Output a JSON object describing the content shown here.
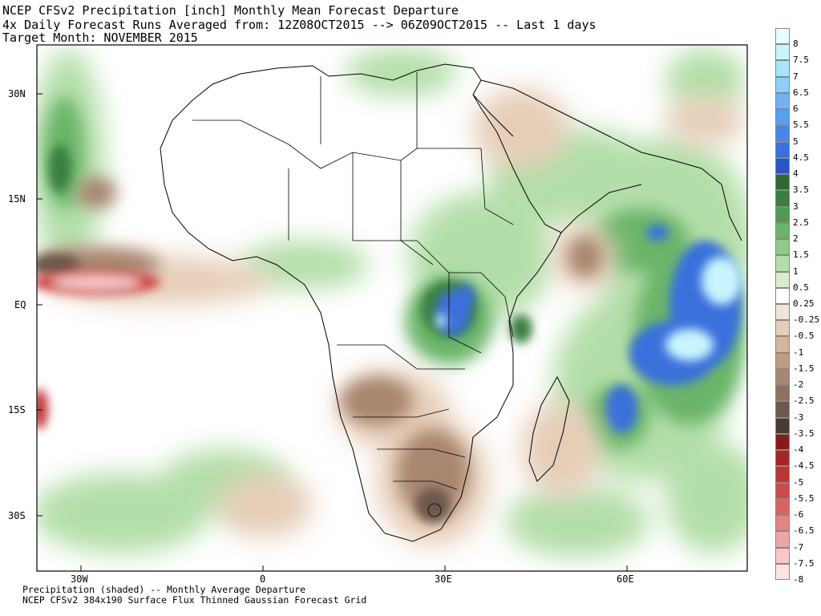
{
  "header": {
    "line1": "NCEP CFSv2 Precipitation [inch] Monthly Mean Forecast Departure",
    "line2": "4x Daily Forecast Runs Averaged from: 12Z08OCT2015 --> 06Z09OCT2015 -- Last 1 days",
    "line3": "Target Month: NOVEMBER 2015"
  },
  "footer": {
    "line1": "Precipitation (shaded) -- Monthly Average Departure",
    "line2": "NCEP CFSv2 384x190 Surface Flux Thinned Gaussian Forecast Grid"
  },
  "axes": {
    "y_ticks": [
      "30N",
      "15N",
      "EQ",
      "15S",
      "30S"
    ],
    "x_ticks": [
      "30W",
      "0",
      "30E",
      "60E"
    ]
  },
  "legend": {
    "entries": [
      {
        "label": "8",
        "color": "#e6ffff"
      },
      {
        "label": "7.5",
        "color": "#c8f4ff"
      },
      {
        "label": "7",
        "color": "#a6e4ff"
      },
      {
        "label": "6.5",
        "color": "#8ccfff"
      },
      {
        "label": "6",
        "color": "#6fb3f5"
      },
      {
        "label": "5.5",
        "color": "#5a9ef0"
      },
      {
        "label": "5",
        "color": "#4a86e6"
      },
      {
        "label": "4.5",
        "color": "#3a6fdc"
      },
      {
        "label": "4",
        "color": "#2a56c8"
      },
      {
        "label": "3.5",
        "color": "#2e6b34"
      },
      {
        "label": "3",
        "color": "#3b7f40"
      },
      {
        "label": "2.5",
        "color": "#4f9a52"
      },
      {
        "label": "2",
        "color": "#6bb56a"
      },
      {
        "label": "1.5",
        "color": "#8fcb88"
      },
      {
        "label": "1",
        "color": "#b4dea9"
      },
      {
        "label": "0.5",
        "color": "#d6eecc"
      },
      {
        "label": "0.25",
        "color": "#ffffff"
      },
      {
        "label": "-0.25",
        "color": "#f2e4d8"
      },
      {
        "label": "-0.5",
        "color": "#e6cdb7"
      },
      {
        "label": "-1",
        "color": "#d6b59a"
      },
      {
        "label": "-1.5",
        "color": "#c09c80"
      },
      {
        "label": "-2",
        "color": "#a88670"
      },
      {
        "label": "-2.5",
        "color": "#8f715f"
      },
      {
        "label": "-3",
        "color": "#6e584b"
      },
      {
        "label": "-3.5",
        "color": "#4a3a31"
      },
      {
        "label": "-4",
        "color": "#8a1a1a"
      },
      {
        "label": "-4.5",
        "color": "#a82424"
      },
      {
        "label": "-5",
        "color": "#c03434"
      },
      {
        "label": "-5.5",
        "color": "#d04848"
      },
      {
        "label": "-6",
        "color": "#dc6262"
      },
      {
        "label": "-6.5",
        "color": "#e78282"
      },
      {
        "label": "-7",
        "color": "#f0a4a4"
      },
      {
        "label": "-7.5",
        "color": "#f7c6c6"
      },
      {
        "label": "-8",
        "color": "#fde4e4"
      }
    ]
  }
}
